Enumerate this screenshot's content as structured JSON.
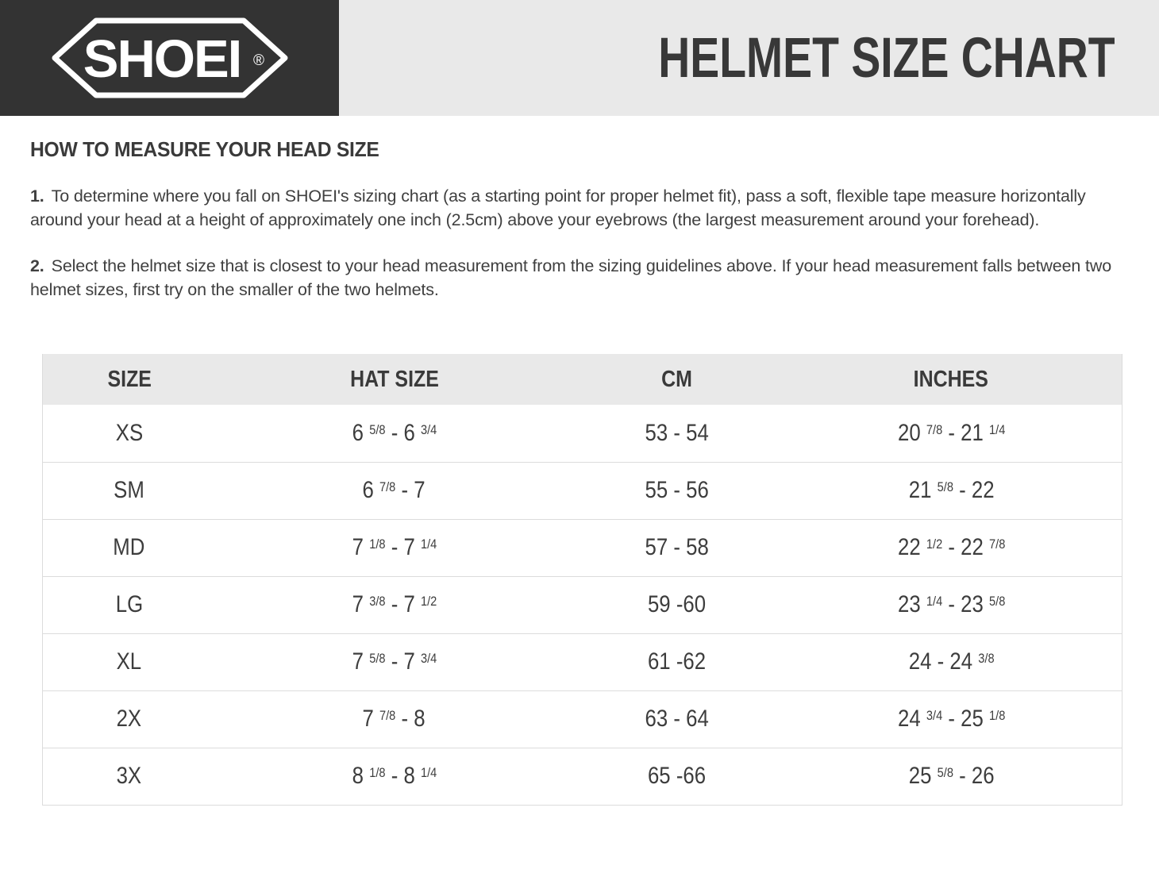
{
  "header": {
    "logo_text": "SHOEI",
    "registered_mark": "®",
    "title": "HELMET SIZE CHART"
  },
  "instructions": {
    "heading": "HOW TO MEASURE YOUR HEAD SIZE",
    "steps": [
      {
        "number": "1.",
        "text": "To determine where you fall on SHOEI's sizing chart (as a starting point for proper helmet fit), pass a soft, flexible tape measure horizontally around your head at a height of approximately one inch (2.5cm) above your eyebrows (the largest measurement around your forehead)."
      },
      {
        "number": "2.",
        "text": "Select the helmet size that is closest to your head measurement from the sizing guidelines above. If your head measurement falls between two helmet sizes, first try on the smaller of the two helmets."
      }
    ]
  },
  "size_table": {
    "columns": [
      "SIZE",
      "HAT SIZE",
      "CM",
      "INCHES"
    ],
    "rows": [
      {
        "size": "XS",
        "hat_size": "6 5/8 - 6 3/4",
        "cm": "53 - 54",
        "inches": "20 7/8 - 21 1/4"
      },
      {
        "size": "SM",
        "hat_size": "6 7/8 - 7",
        "cm": "55 - 56",
        "inches": "21 5/8 - 22"
      },
      {
        "size": "MD",
        "hat_size": "7 1/8 - 7 1/4",
        "cm": "57 - 58",
        "inches": "22 1/2 - 22 7/8"
      },
      {
        "size": "LG",
        "hat_size": "7 3/8 - 7 1/2",
        "cm": "59 -60",
        "inches": "23 1/4 - 23 5/8"
      },
      {
        "size": "XL",
        "hat_size": "7 5/8 - 7 3/4",
        "cm": "61 -62",
        "inches": "24 - 24 3/8"
      },
      {
        "size": "2X",
        "hat_size": "7 7/8 - 8",
        "cm": "63 - 64",
        "inches": "24 3/4 - 25 1/8"
      },
      {
        "size": "3X",
        "hat_size": "8 1/8 - 8 1/4",
        "cm": "65 -66",
        "inches": "25 5/8 - 26"
      }
    ]
  },
  "colors": {
    "header_dark": "#333333",
    "banner_gray": "#e9e9e9",
    "table_header_gray": "#e9e9e9",
    "text_dark": "#3d3d3d",
    "border_light": "#dcdcdc"
  }
}
